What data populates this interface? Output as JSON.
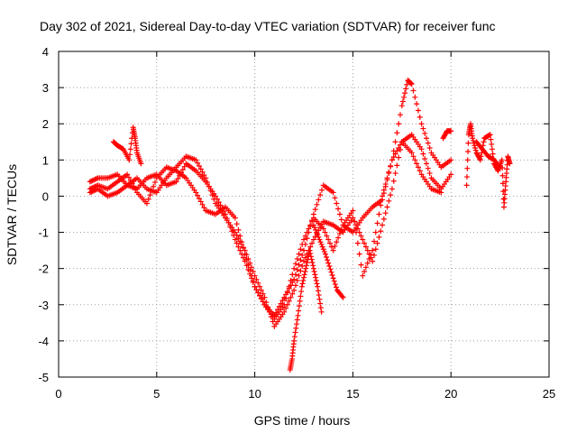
{
  "chart_data": {
    "type": "scatter",
    "title": "Day 302 of 2021, Sidereal Day-to-day VTEC variation (SDTVAR) for receiver func",
    "xlabel": "GPS time / hours",
    "ylabel": "SDTVAR / TECUs",
    "xlim": [
      0,
      25
    ],
    "ylim": [
      -5,
      4
    ],
    "xticks": [
      "0",
      "5",
      "10",
      "15",
      "20",
      "25"
    ],
    "yticks": [
      "-5",
      "-4",
      "-3",
      "-2",
      "-1",
      "0",
      "1",
      "2",
      "3",
      "4"
    ],
    "grid": true,
    "legend": "none",
    "marker": "+",
    "color": "#ff0000",
    "series": [
      {
        "x": [
          1.6,
          2.0,
          2.5,
          3.0,
          3.5,
          4.0,
          4.5,
          5.0,
          5.5,
          6.0,
          6.5,
          7.0,
          7.5,
          8.0,
          8.5,
          9.0,
          9.5,
          10.0,
          10.5,
          11.0,
          11.5,
          12.0,
          12.5,
          13.0,
          13.5,
          14.0,
          14.5,
          15.0,
          15.5,
          16.0,
          16.5,
          17.0,
          17.5,
          17.8,
          18.0,
          18.5,
          19.0,
          19.5,
          20.0
        ],
        "y": [
          0.4,
          0.5,
          0.5,
          0.6,
          0.3,
          0.2,
          0.5,
          0.6,
          0.3,
          0.4,
          0.9,
          0.7,
          0.4,
          0.0,
          -0.5,
          -1.2,
          -1.8,
          -2.5,
          -3.0,
          -3.3,
          -2.8,
          -2.3,
          -1.5,
          -0.5,
          0.3,
          0.1,
          -0.8,
          -1.0,
          -0.6,
          -0.3,
          -0.1,
          1.0,
          2.5,
          3.2,
          3.1,
          2.0,
          1.2,
          0.8,
          1.0
        ]
      },
      {
        "x": [
          1.6,
          2.0,
          2.5,
          3.0,
          3.5,
          4.0,
          4.5,
          5.0,
          5.5,
          6.0,
          6.5,
          7.0,
          7.5,
          8.0,
          8.5,
          9.0,
          9.5,
          10.0,
          10.5,
          11.0,
          11.5,
          12.0,
          12.5,
          13.0,
          13.5,
          14.0,
          14.5,
          15.0,
          15.5,
          16.0,
          16.5,
          17.0,
          17.5,
          18.0,
          18.5,
          19.0,
          19.5,
          20.0
        ],
        "y": [
          0.1,
          0.2,
          0.0,
          0.1,
          0.3,
          0.5,
          0.2,
          0.1,
          0.5,
          0.8,
          1.1,
          1.0,
          0.5,
          -0.2,
          -0.6,
          -1.0,
          -1.5,
          -2.2,
          -2.8,
          -3.6,
          -3.2,
          -2.6,
          -1.8,
          -1.2,
          -0.7,
          -0.8,
          -1.0,
          -0.6,
          -1.2,
          -1.8,
          -0.8,
          0.2,
          1.5,
          1.7,
          1.3,
          0.5,
          0.2,
          0.6
        ]
      },
      {
        "x": [
          1.6,
          2.0,
          2.5,
          3.0,
          3.5,
          4.0,
          4.5,
          5.0,
          5.5,
          6.0,
          6.5,
          7.0,
          7.5,
          8.0,
          8.5,
          9.0,
          9.5,
          10.0,
          10.5,
          11.0,
          11.5,
          12.0,
          12.5,
          13.0,
          13.5,
          14.0,
          14.5,
          15.0,
          15.5,
          16.0,
          16.5,
          17.0,
          17.5,
          18.0,
          18.5,
          19.0,
          19.5
        ],
        "y": [
          0.2,
          0.3,
          0.2,
          0.4,
          0.6,
          0.1,
          -0.2,
          0.5,
          0.8,
          0.7,
          0.5,
          0.1,
          -0.4,
          -0.5,
          -0.3,
          -0.6,
          -1.6,
          -2.5,
          -3.0,
          -3.4,
          -3.0,
          -2.0,
          -1.2,
          -0.6,
          -0.9,
          -1.5,
          -0.8,
          -0.4,
          -2.2,
          -1.5,
          0.0,
          1.0,
          1.5,
          1.2,
          0.6,
          0.2,
          0.1
        ]
      },
      {
        "x": [
          2.8,
          3.0,
          3.3,
          3.6,
          3.8,
          3.9,
          4.0,
          4.2
        ],
        "y": [
          1.5,
          1.4,
          1.3,
          1.0,
          1.9,
          1.6,
          1.2,
          0.9
        ]
      },
      {
        "x": [
          11.8,
          11.9,
          12.0,
          12.2,
          12.4,
          12.6,
          12.8,
          13.0,
          13.2,
          13.4
        ],
        "y": [
          -4.8,
          -4.5,
          -4.0,
          -3.3,
          -2.5,
          -2.0,
          -1.5,
          -2.0,
          -2.5,
          -3.2
        ]
      },
      {
        "x": [
          13.0,
          13.3,
          13.6,
          13.9,
          14.2,
          14.5
        ],
        "y": [
          -0.8,
          -1.2,
          -1.6,
          -2.1,
          -2.6,
          -2.8
        ]
      },
      {
        "x": [
          19.6,
          19.8,
          20.0
        ],
        "y": [
          1.6,
          1.8,
          1.8
        ]
      },
      {
        "x": [
          20.8,
          20.9,
          21.0,
          21.1,
          21.3,
          21.5,
          21.7,
          22.0,
          22.2,
          22.4,
          22.6,
          22.7,
          22.8,
          22.9,
          23.0
        ],
        "y": [
          0.3,
          1.7,
          2.0,
          1.6,
          1.2,
          1.0,
          1.6,
          1.7,
          0.9,
          0.7,
          1.0,
          -0.3,
          0.4,
          1.1,
          0.9
        ]
      },
      {
        "x": [
          21.3,
          21.6,
          21.9,
          22.2,
          22.5
        ],
        "y": [
          1.5,
          1.3,
          1.1,
          1.0,
          0.8
        ]
      }
    ]
  }
}
